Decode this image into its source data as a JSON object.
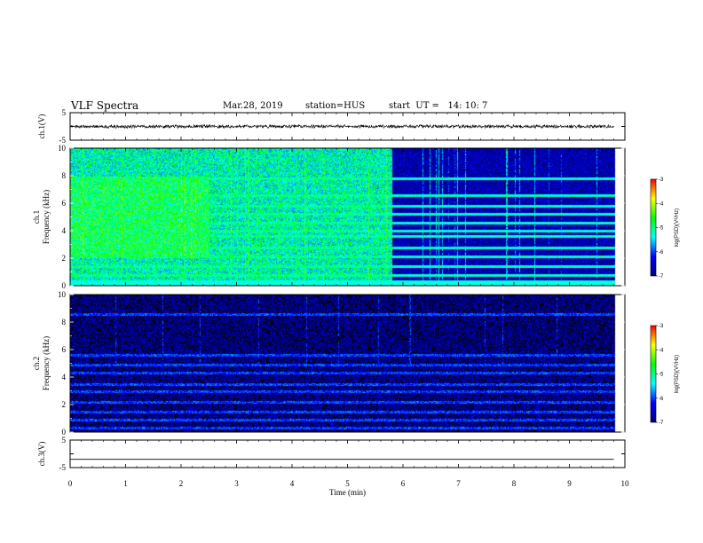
{
  "header": {
    "title": "VLF Spectra",
    "date": "Mar.28, 2019",
    "station": "station=HUS",
    "start": "start  UT =   14: 10: 7"
  },
  "chart_data": [
    {
      "type": "line",
      "panel": "ch1-waveform",
      "ylabel": "ch.1(V)",
      "yticks": [
        "5",
        "-5"
      ],
      "ylim": [
        -5,
        5
      ],
      "xlim": [
        0,
        10
      ],
      "trace": "noisy waveform near 0 V, amplitude about ±0.5 V, ends near 9.8 min"
    },
    {
      "type": "heatmap",
      "panel": "ch1-spectrogram",
      "ylabel_1": "ch.1",
      "ylabel_2": "Frequency (kHz)",
      "yticks": [
        "0",
        "2",
        "4",
        "6",
        "8",
        "10"
      ],
      "ylim": [
        0,
        10
      ],
      "xlim": [
        0,
        10
      ],
      "colorbar": {
        "label": "log(PSD)(V²/Hz)",
        "ticks": [
          "-3",
          "-4",
          "-5",
          "-6",
          "-7"
        ],
        "range": [
          -7,
          -3
        ]
      },
      "levels": {
        "background_0_to_5_8_min": -5.2,
        "background_after_5_8_min": -6.8,
        "lines": -5.5
      },
      "line_frequencies_khz": [
        0.3,
        0.8,
        1.4,
        2.1,
        2.8,
        3.6,
        4.0,
        4.6,
        5.2,
        5.8,
        6.6,
        7.8
      ]
    },
    {
      "type": "heatmap",
      "panel": "ch2-spectrogram",
      "ylabel_1": "ch.2",
      "ylabel_2": "Frequency (kHz)",
      "yticks": [
        "0",
        "2",
        "4",
        "6",
        "8",
        "10"
      ],
      "ylim": [
        0,
        10
      ],
      "xlim": [
        0,
        10
      ],
      "colorbar": {
        "label": "log(PSD)(V²/Hz)",
        "ticks": [
          "-3",
          "-4",
          "-5",
          "-6",
          "-7"
        ],
        "range": [
          -7,
          -3
        ]
      },
      "levels": {
        "background": -7.0,
        "lines": -6.2
      },
      "line_frequencies_khz": [
        0.3,
        0.9,
        1.5,
        2.2,
        3.0,
        3.5,
        4.3,
        4.9,
        5.6,
        8.6
      ]
    },
    {
      "type": "line",
      "panel": "ch3-waveform",
      "ylabel": "ch.3(V)",
      "yticks": [
        "5",
        "-5"
      ],
      "ylim": [
        -5,
        5
      ],
      "xlim": [
        0,
        10
      ],
      "trace": "flat line near -2 V"
    }
  ],
  "xaxis": {
    "label": "Time (min)",
    "ticks": [
      "0",
      "1",
      "2",
      "3",
      "4",
      "5",
      "6",
      "7",
      "8",
      "9",
      "10"
    ]
  },
  "colors": {
    "background": "#ffffff",
    "axes": "#000000",
    "colormap": [
      "#000080",
      "#0000ff",
      "#00ffff",
      "#00ff00",
      "#ffff00",
      "#ff0000"
    ]
  }
}
